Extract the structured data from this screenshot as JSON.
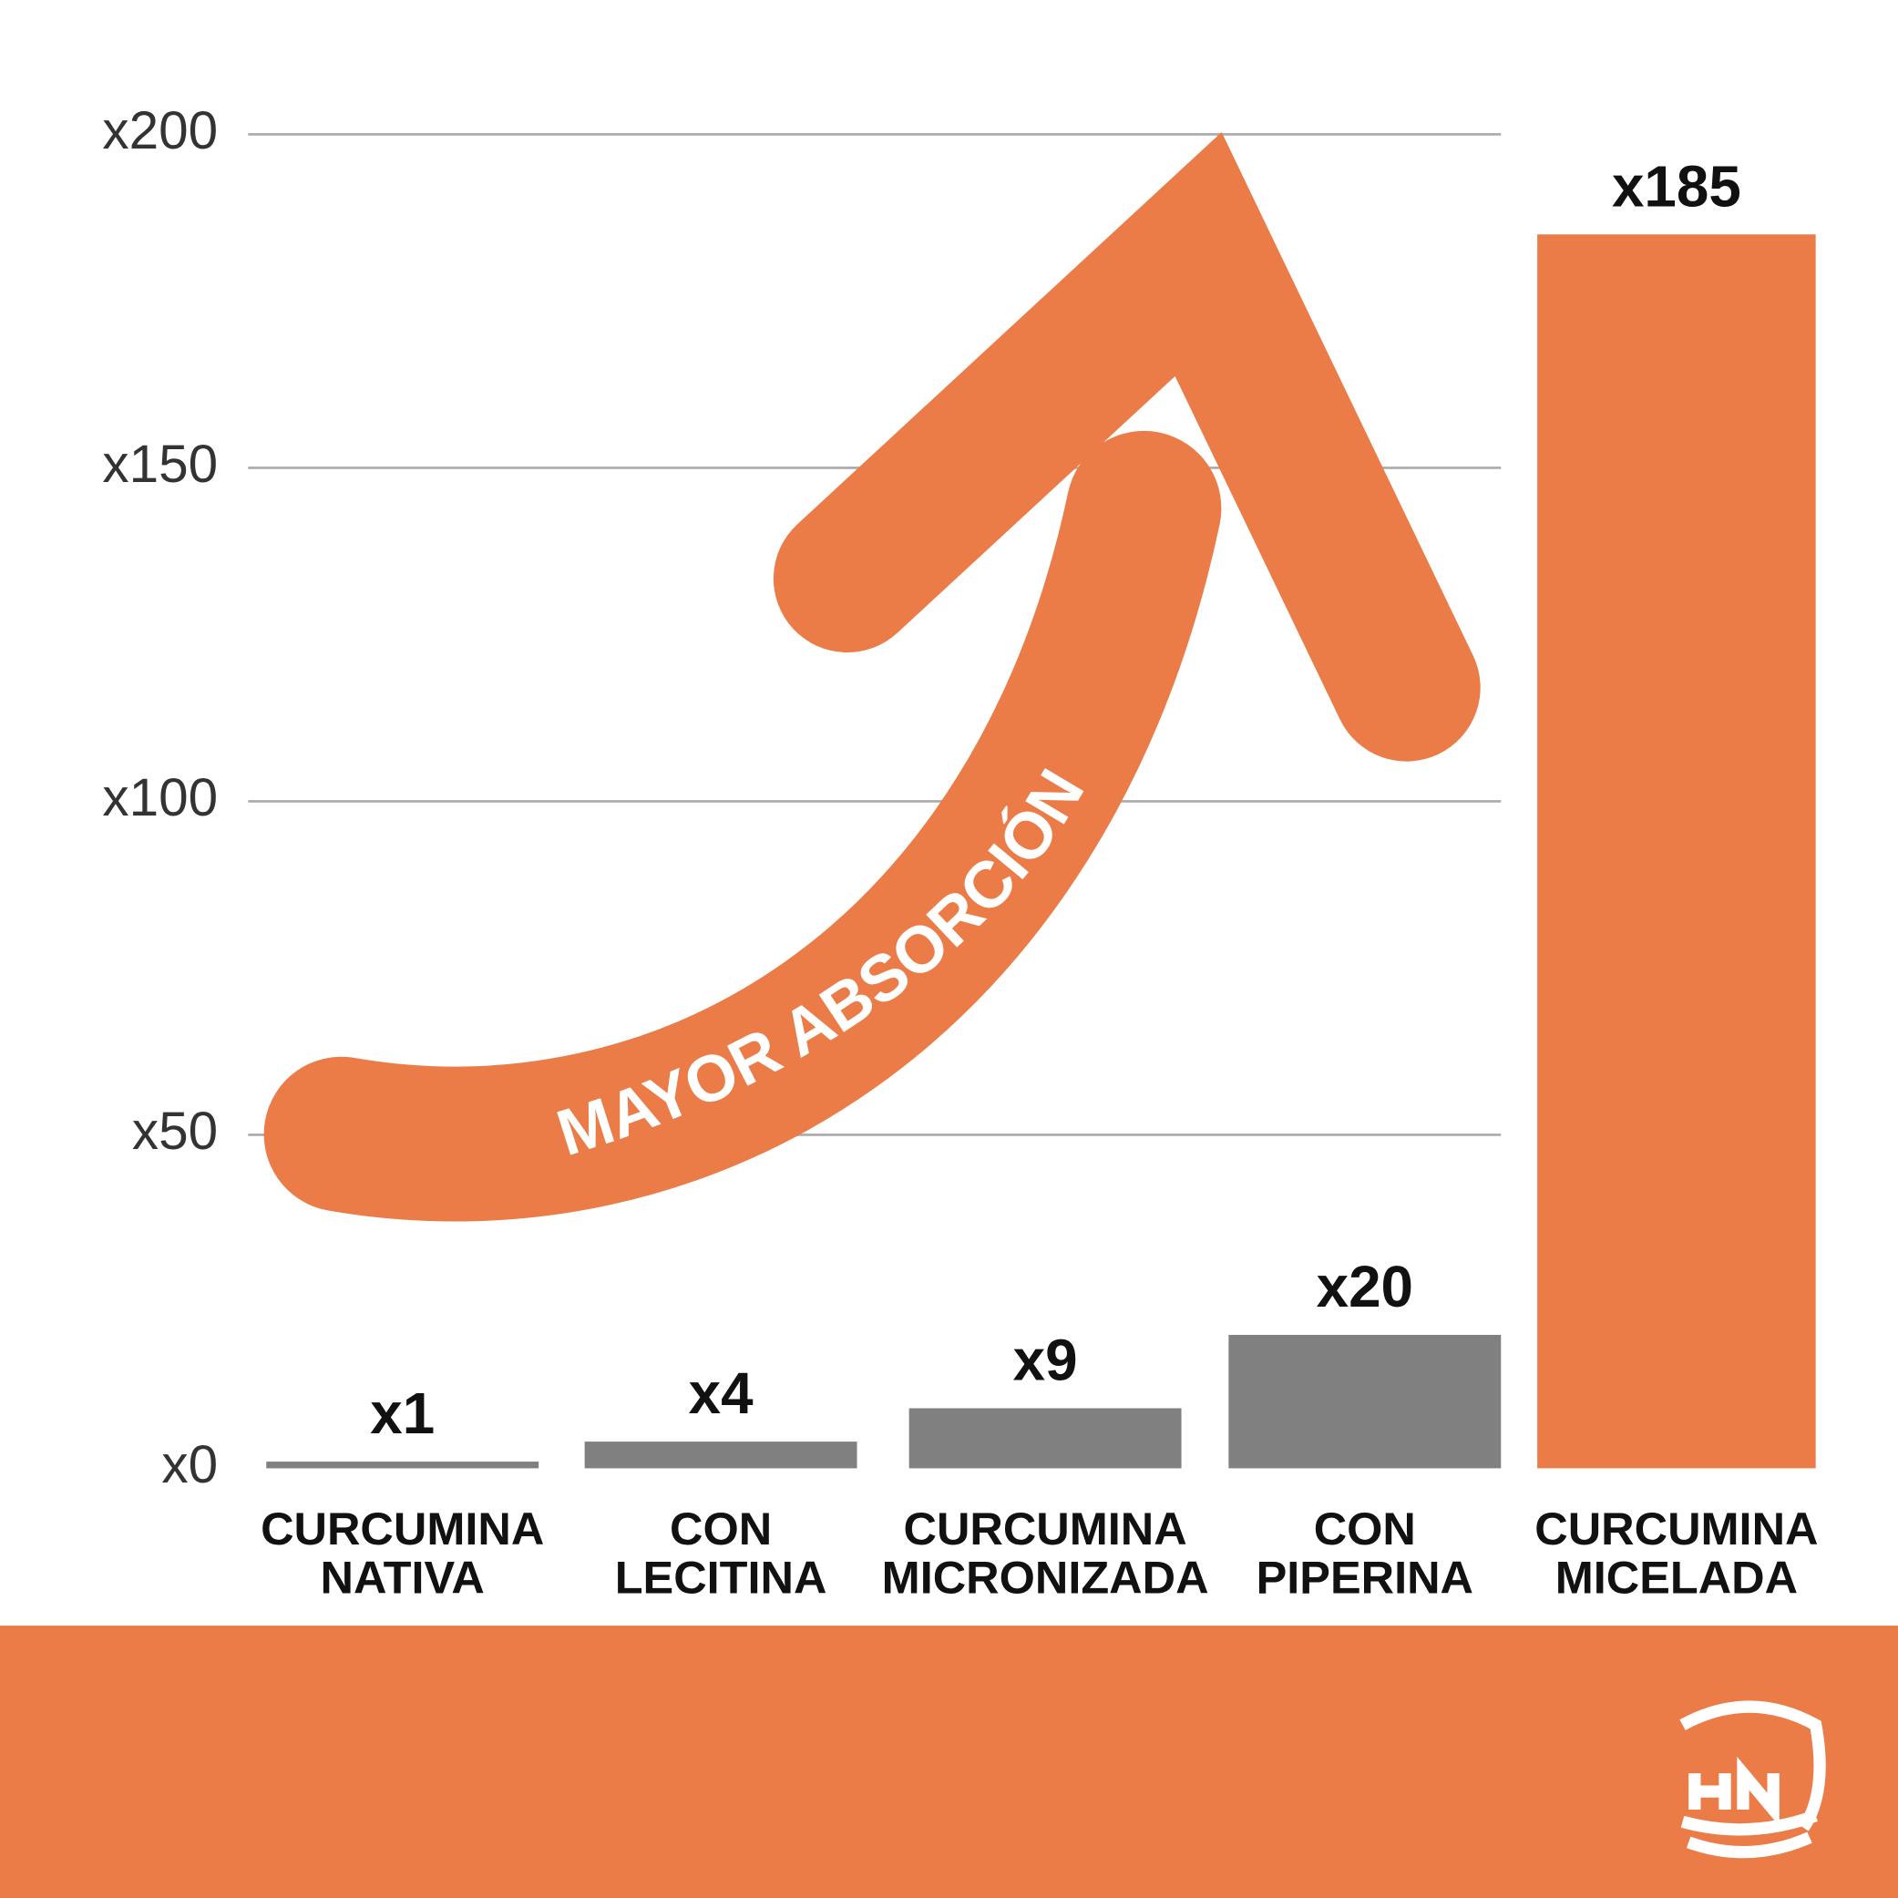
{
  "chart_data": {
    "type": "bar",
    "categories": [
      [
        "CURCUMINA",
        "NATIVA"
      ],
      [
        "CON",
        "LECITINA"
      ],
      [
        "CURCUMINA",
        "MICRONIZADA"
      ],
      [
        "CON",
        "PIPERINA"
      ],
      [
        "CURCUMINA",
        "MICELADA"
      ]
    ],
    "values": [
      1,
      4,
      9,
      20,
      185
    ],
    "value_labels": [
      "x1",
      "x4",
      "x9",
      "x20",
      "x185"
    ],
    "colors": [
      "#808080",
      "#808080",
      "#808080",
      "#808080",
      "#ec7c47"
    ],
    "ylim": [
      0,
      200
    ],
    "yticks": [
      {
        "value": 0,
        "label": "x0"
      },
      {
        "value": 50,
        "label": "x50"
      },
      {
        "value": 100,
        "label": "x100"
      },
      {
        "value": 150,
        "label": "x150"
      },
      {
        "value": 200,
        "label": "x200"
      }
    ],
    "grid": true,
    "annotation": "MAYOR ABSORCIÓN"
  }
}
